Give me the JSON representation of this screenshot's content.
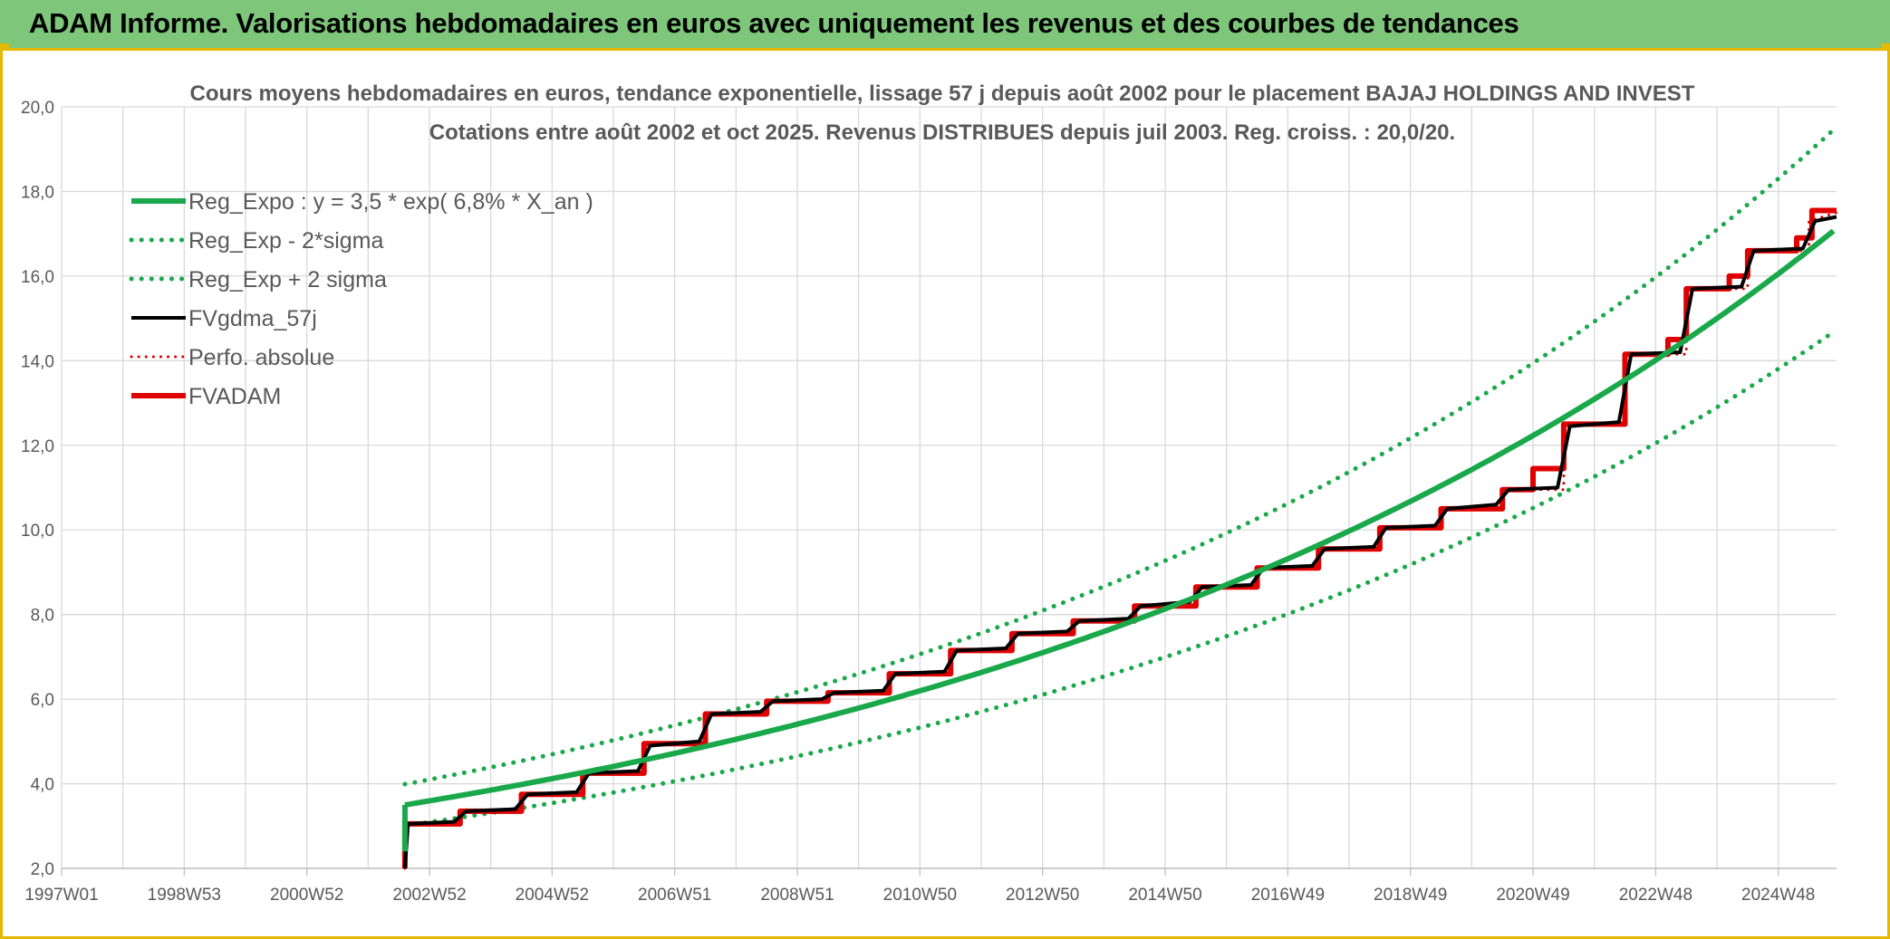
{
  "banner": {
    "title": "ADAM Informe. Valorisations hebdomadaires en euros avec uniquement les revenus et des courbes de tendances"
  },
  "colors": {
    "banner_bg": "#7dc67a",
    "frame_accent": "#e6b800",
    "reg_expo": "#19a84a",
    "sigma": "#19a84a",
    "fvgdma": "#000000",
    "perfo": "#e00000",
    "fvadam": "#e00000",
    "grid": "#d9d9d9"
  },
  "chart_data": {
    "type": "line",
    "title": "Cours moyens hebdomadaires en euros, tendance exponentielle, lissage 57 j depuis août 2002 pour le placement BAJAJ HOLDINGS AND INVEST",
    "subtitle": "Cotations entre août 2002 et oct 2025. Revenus DISTRIBUES depuis juil 2003. Reg. croiss. : 20,0/20.",
    "xlabel": "",
    "ylabel": "",
    "x_range": [
      1997.0,
      2025.95
    ],
    "ylim": [
      2.0,
      20.0
    ],
    "y_ticks": [
      "2,0",
      "4,0",
      "6,0",
      "8,0",
      "10,0",
      "12,0",
      "14,0",
      "16,0",
      "18,0",
      "20,0"
    ],
    "x_ticks": [
      "1997W01",
      "1998W53",
      "2000W52",
      "2002W52",
      "2004W52",
      "2006W51",
      "2008W51",
      "2010W50",
      "2012W50",
      "2014W50",
      "2016W49",
      "2018W49",
      "2020W49",
      "2022W48",
      "2024W48"
    ],
    "x_tick_positions": [
      1997.0,
      1999.0,
      2001.0,
      2003.0,
      2005.0,
      2007.0,
      2009.0,
      2011.0,
      2013.0,
      2015.0,
      2017.0,
      2019.0,
      2021.0,
      2023.0,
      2025.0
    ],
    "grid": true,
    "legend_position": "top-left",
    "regression": {
      "start": 2002.6,
      "end": 2025.95,
      "a": 3.5,
      "rate_pct": 6.8,
      "sigma_factor": 0.14
    },
    "series": [
      {
        "name": "Reg_Expo : y = 3,5 * exp( 6,8% *  X_an )",
        "style": "solid",
        "color": "#19a84a",
        "x": [
          2002.6,
          2005.0,
          2010.0,
          2015.0,
          2020.0,
          2025.95
        ],
        "values": [
          3.5,
          4.1,
          5.8,
          8.2,
          11.8,
          16.9
        ]
      },
      {
        "name": "Reg_Exp - 2*sigma",
        "style": "dotted",
        "color": "#19a84a",
        "x": [
          2002.6,
          2005.0,
          2010.0,
          2015.0,
          2020.0,
          2025.95
        ],
        "values": [
          3.0,
          3.5,
          5.0,
          7.0,
          10.1,
          14.5
        ]
      },
      {
        "name": "Reg_Exp + 2 sigma",
        "style": "dotted",
        "color": "#19a84a",
        "x": [
          2002.6,
          2005.0,
          2010.0,
          2015.0,
          2020.0,
          2025.95
        ],
        "values": [
          4.0,
          4.7,
          6.7,
          9.4,
          13.5,
          19.7
        ]
      },
      {
        "name": "FVgdma_57j",
        "style": "solid",
        "color": "#000000",
        "x": [
          2002.6,
          2002.65,
          2003.4,
          2003.6,
          2004.4,
          2004.6,
          2005.4,
          2005.6,
          2006.4,
          2006.6,
          2007.4,
          2007.6,
          2008.4,
          2008.6,
          2009.4,
          2009.6,
          2010.4,
          2010.6,
          2011.4,
          2011.6,
          2012.4,
          2012.6,
          2013.4,
          2013.6,
          2014.4,
          2014.6,
          2015.4,
          2015.6,
          2016.4,
          2016.6,
          2017.4,
          2017.6,
          2018.4,
          2018.6,
          2019.4,
          2019.6,
          2020.4,
          2020.6,
          2021.4,
          2021.6,
          2022.4,
          2022.6,
          2023.4,
          2023.6,
          2024.4,
          2024.6,
          2025.4,
          2025.6,
          2025.95
        ],
        "values": [
          2.0,
          3.05,
          3.1,
          3.35,
          3.4,
          3.75,
          3.8,
          4.25,
          4.3,
          4.9,
          5.0,
          5.65,
          5.7,
          5.95,
          6.0,
          6.15,
          6.2,
          6.6,
          6.65,
          7.15,
          7.2,
          7.55,
          7.6,
          7.85,
          7.9,
          8.2,
          8.3,
          8.65,
          8.7,
          9.1,
          9.15,
          9.55,
          9.6,
          10.05,
          10.1,
          10.5,
          10.6,
          10.95,
          11.0,
          12.45,
          12.55,
          14.15,
          14.2,
          15.7,
          15.75,
          16.6,
          16.65,
          17.3,
          17.4
        ]
      },
      {
        "name": "Perfo. absolue",
        "style": "dotted",
        "color": "#e00000",
        "x": [
          2002.6,
          2002.65,
          2003.5,
          2003.5,
          2004.5,
          2004.5,
          2005.5,
          2005.5,
          2006.5,
          2006.5,
          2007.5,
          2007.5,
          2008.5,
          2008.5,
          2009.5,
          2009.5,
          2010.5,
          2010.5,
          2011.5,
          2011.5,
          2012.5,
          2012.5,
          2013.5,
          2013.5,
          2014.5,
          2014.5,
          2015.5,
          2015.5,
          2016.5,
          2016.5,
          2017.5,
          2017.5,
          2018.5,
          2018.5,
          2019.5,
          2019.5,
          2020.5,
          2020.5,
          2021.5,
          2021.5,
          2022.5,
          2022.5,
          2023.5,
          2023.5,
          2024.5,
          2024.5,
          2025.5,
          2025.5,
          2025.95
        ],
        "values": [
          2.0,
          3.05,
          3.05,
          3.35,
          3.35,
          3.75,
          3.75,
          4.25,
          4.25,
          4.95,
          4.95,
          5.65,
          5.65,
          5.95,
          5.95,
          6.15,
          6.15,
          6.6,
          6.6,
          7.15,
          7.15,
          7.55,
          7.55,
          7.85,
          7.85,
          8.2,
          8.2,
          8.65,
          8.65,
          9.1,
          9.1,
          9.55,
          9.55,
          10.05,
          10.05,
          10.5,
          10.5,
          10.95,
          10.95,
          12.5,
          12.5,
          14.15,
          14.15,
          15.7,
          15.7,
          16.6,
          16.6,
          17.3,
          17.5
        ]
      },
      {
        "name": "FVADAM",
        "style": "solid",
        "color": "#e00000",
        "x": [
          2002.6,
          2002.6,
          2003.5,
          2003.5,
          2004.5,
          2004.5,
          2005.5,
          2005.5,
          2006.5,
          2006.5,
          2007.5,
          2007.5,
          2008.5,
          2008.5,
          2009.5,
          2009.5,
          2010.5,
          2010.5,
          2011.5,
          2011.5,
          2012.5,
          2012.5,
          2013.5,
          2013.5,
          2014.5,
          2014.5,
          2015.5,
          2015.5,
          2016.5,
          2016.5,
          2017.5,
          2017.5,
          2018.5,
          2018.5,
          2019.5,
          2019.5,
          2020.5,
          2020.5,
          2021.0,
          2021.0,
          2021.5,
          2021.5,
          2022.5,
          2022.5,
          2023.2,
          2023.2,
          2023.5,
          2023.5,
          2024.2,
          2024.2,
          2024.5,
          2024.5,
          2025.3,
          2025.3,
          2025.55,
          2025.55,
          2025.95
        ],
        "values": [
          2.0,
          3.05,
          3.05,
          3.35,
          3.35,
          3.75,
          3.75,
          4.25,
          4.25,
          4.95,
          4.95,
          5.65,
          5.65,
          5.95,
          5.95,
          6.15,
          6.15,
          6.6,
          6.6,
          7.15,
          7.15,
          7.55,
          7.55,
          7.85,
          7.85,
          8.2,
          8.2,
          8.65,
          8.65,
          9.1,
          9.1,
          9.55,
          9.55,
          10.05,
          10.05,
          10.5,
          10.5,
          10.95,
          10.95,
          11.45,
          11.45,
          12.5,
          12.5,
          14.15,
          14.15,
          14.5,
          14.5,
          15.7,
          15.7,
          16.0,
          16.0,
          16.6,
          16.6,
          16.9,
          16.9,
          17.55,
          17.55
        ]
      }
    ]
  }
}
